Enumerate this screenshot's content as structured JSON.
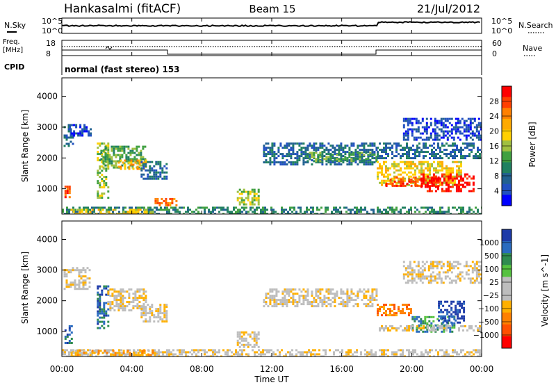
{
  "header": {
    "station": "Hankasalmi (fitACF)",
    "beam": "Beam 15",
    "date": "21/Jul/2012"
  },
  "top_panels": {
    "nsky_label": "N.Sky",
    "nsky_ticks": [
      "10^5",
      "10^0"
    ],
    "nsearch_label": "N.Search",
    "nsearch_ticks": [
      "10^5",
      "10^0"
    ],
    "freq_label": "Freq.",
    "freq_unit": "[MHz]",
    "freq_ticks": [
      "18",
      "8"
    ],
    "nave_label": "Nave",
    "nave_ticks": [
      "60",
      "0"
    ],
    "cpid_label": "CPID",
    "cpid_text": "normal (fast stereo) 153"
  },
  "chart_data": [
    {
      "type": "heatmap",
      "name": "power-panel",
      "ylabel": "Slant Range [km]",
      "xlim_hours": [
        0,
        24
      ],
      "ylim": [
        180,
        4600
      ],
      "y_ticks": [
        1000,
        2000,
        3000,
        4000
      ],
      "colorbar": {
        "label": "Power [dB]",
        "tick_labels": [
          "28",
          "24",
          "20",
          "16",
          "12",
          "8",
          "4"
        ],
        "colors": [
          "#ff0000",
          "#ff4000",
          "#ff8000",
          "#ffaa00",
          "#ffd000",
          "#a0c040",
          "#40a040",
          "#208060",
          "#206090",
          "#2050c0",
          "#0000ff"
        ]
      },
      "echo_regions": [
        {
          "t": [
            0.1,
            0.6
          ],
          "r": [
            2400,
            3100
          ],
          "level": 2
        },
        {
          "t": [
            0.4,
            1.6
          ],
          "r": [
            2700,
            3100
          ],
          "level": 1
        },
        {
          "t": [
            0.15,
            0.45
          ],
          "r": [
            700,
            1100
          ],
          "level": 9
        },
        {
          "t": [
            2.0,
            2.6
          ],
          "r": [
            700,
            2500
          ],
          "level": 5
        },
        {
          "t": [
            2.2,
            4.8
          ],
          "r": [
            1700,
            2400
          ],
          "level": 4
        },
        {
          "t": [
            3.2,
            4.8
          ],
          "r": [
            1650,
            1950
          ],
          "level": 7
        },
        {
          "t": [
            4.5,
            6.0
          ],
          "r": [
            1300,
            1900
          ],
          "level": 2
        },
        {
          "t": [
            5.3,
            6.6
          ],
          "r": [
            450,
            700
          ],
          "level": 8
        },
        {
          "t": [
            0.0,
            24.0
          ],
          "r": [
            200,
            420
          ],
          "level": 3
        },
        {
          "t": [
            0.5,
            5.5
          ],
          "r": [
            200,
            350
          ],
          "level": 6
        },
        {
          "t": [
            10.0,
            11.2
          ],
          "r": [
            500,
            1000
          ],
          "level": 5
        },
        {
          "t": [
            11.5,
            18.0
          ],
          "r": [
            1800,
            2500
          ],
          "level": 2
        },
        {
          "t": [
            14.0,
            18.0
          ],
          "r": [
            1900,
            2200
          ],
          "level": 4
        },
        {
          "t": [
            18.0,
            24.0
          ],
          "r": [
            2000,
            2500
          ],
          "level": 2
        },
        {
          "t": [
            18.0,
            22.8
          ],
          "r": [
            1100,
            1900
          ],
          "level": 6
        },
        {
          "t": [
            18.5,
            21.5
          ],
          "r": [
            1100,
            1400
          ],
          "level": 9
        },
        {
          "t": [
            20.5,
            23.5
          ],
          "r": [
            900,
            1500
          ],
          "level": 10
        },
        {
          "t": [
            19.5,
            24.0
          ],
          "r": [
            2600,
            3300
          ],
          "level": 1
        }
      ]
    },
    {
      "type": "heatmap",
      "name": "velocity-panel",
      "ylabel": "Slant Range [km]",
      "xlabel": "Time UT",
      "xlim_hours": [
        0,
        24
      ],
      "x_ticks": [
        "00:00",
        "04:00",
        "08:00",
        "12:00",
        "16:00",
        "20:00",
        "00:00"
      ],
      "ylim": [
        180,
        4600
      ],
      "y_ticks": [
        1000,
        2000,
        3000,
        4000
      ],
      "colorbar": {
        "label": "Velocity [m s^-1]",
        "tick_labels": [
          "1000",
          "500",
          "100",
          "25",
          "−25",
          "−100",
          "−500",
          "−1000"
        ],
        "colors": [
          "#1d3aa8",
          "#2a6bbf",
          "#2f8b4f",
          "#55c23f",
          "#bdbdbd",
          "#bdbdbd",
          "#ffb000",
          "#ff8000",
          "#ff5000",
          "#ff0000"
        ]
      },
      "echo_regions": [
        {
          "t": [
            0.1,
            1.6
          ],
          "r": [
            2400,
            3100
          ],
          "level": 4
        },
        {
          "t": [
            0.15,
            0.55
          ],
          "r": [
            650,
            1200
          ],
          "level": 8
        },
        {
          "t": [
            2.0,
            2.6
          ],
          "r": [
            1100,
            2500
          ],
          "level": 8
        },
        {
          "t": [
            2.6,
            4.8
          ],
          "r": [
            1700,
            2400
          ],
          "level": 4
        },
        {
          "t": [
            4.5,
            6.0
          ],
          "r": [
            1300,
            1900
          ],
          "level": 4
        },
        {
          "t": [
            0.0,
            24.0
          ],
          "r": [
            200,
            420
          ],
          "level": 4
        },
        {
          "t": [
            0.5,
            5.5
          ],
          "r": [
            250,
            400
          ],
          "level": 3
        },
        {
          "t": [
            10.0,
            11.2
          ],
          "r": [
            500,
            1000
          ],
          "level": 4
        },
        {
          "t": [
            11.5,
            18.0
          ],
          "r": [
            1800,
            2400
          ],
          "level": 4
        },
        {
          "t": [
            18.0,
            20.0
          ],
          "r": [
            1500,
            1900
          ],
          "level": 2
        },
        {
          "t": [
            20.0,
            22.5
          ],
          "r": [
            1000,
            1500
          ],
          "level": 7
        },
        {
          "t": [
            21.5,
            23.0
          ],
          "r": [
            1300,
            2000
          ],
          "level": 9
        },
        {
          "t": [
            18.0,
            24.0
          ],
          "r": [
            1000,
            1200
          ],
          "level": 4
        },
        {
          "t": [
            19.5,
            24.0
          ],
          "r": [
            2600,
            3300
          ],
          "level": 4
        }
      ]
    }
  ]
}
